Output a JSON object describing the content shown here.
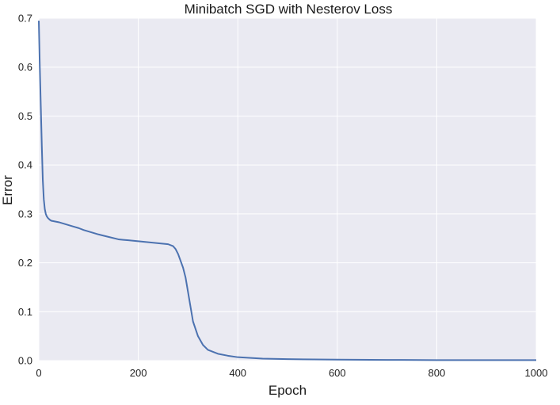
{
  "chart_data": {
    "type": "line",
    "title": "Minibatch SGD with Nesterov Loss",
    "xlabel": "Epoch",
    "ylabel": "Error",
    "xlim": [
      0,
      1000
    ],
    "ylim": [
      0.0,
      0.7
    ],
    "xticks": [
      0,
      200,
      400,
      600,
      800,
      1000
    ],
    "xtick_labels": [
      "0",
      "200",
      "400",
      "600",
      "800",
      "1000"
    ],
    "yticks": [
      0.0,
      0.1,
      0.2,
      0.3,
      0.4,
      0.5,
      0.6,
      0.7
    ],
    "ytick_labels": [
      "0.0",
      "0.1",
      "0.2",
      "0.3",
      "0.4",
      "0.5",
      "0.6",
      "0.7"
    ],
    "grid": true,
    "background_color": "#eaeaf2",
    "grid_color": "#ffffff",
    "series": [
      {
        "color": "#4c72b0",
        "x": [
          0,
          2,
          4,
          6,
          8,
          10,
          12,
          14,
          16,
          18,
          20,
          22,
          25,
          30,
          40,
          50,
          60,
          70,
          80,
          90,
          100,
          120,
          140,
          160,
          170,
          180,
          200,
          220,
          240,
          260,
          270,
          275,
          280,
          290,
          295,
          300,
          305,
          310,
          320,
          330,
          340,
          360,
          380,
          400,
          450,
          500,
          600,
          700,
          800,
          900,
          1000
        ],
        "y": [
          0.695,
          0.6,
          0.52,
          0.44,
          0.37,
          0.33,
          0.31,
          0.3,
          0.295,
          0.292,
          0.29,
          0.288,
          0.286,
          0.285,
          0.283,
          0.28,
          0.277,
          0.274,
          0.271,
          0.267,
          0.264,
          0.258,
          0.253,
          0.248,
          0.247,
          0.246,
          0.244,
          0.242,
          0.24,
          0.238,
          0.234,
          0.228,
          0.218,
          0.19,
          0.17,
          0.14,
          0.11,
          0.08,
          0.05,
          0.032,
          0.022,
          0.014,
          0.01,
          0.007,
          0.004,
          0.003,
          0.002,
          0.0015,
          0.001,
          0.001,
          0.001
        ]
      }
    ]
  }
}
